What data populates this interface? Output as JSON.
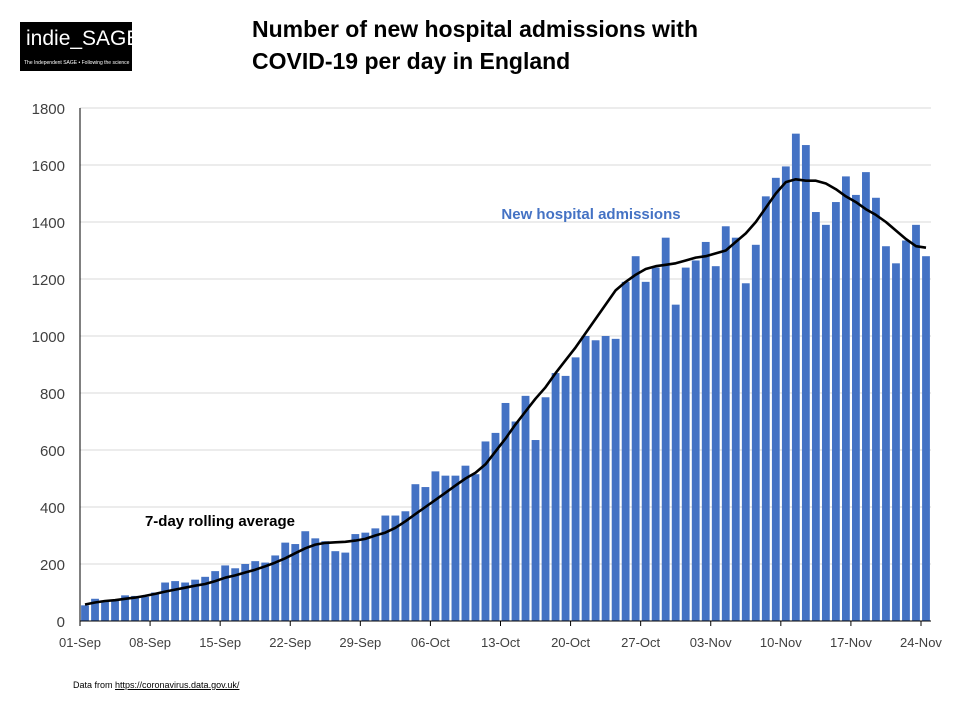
{
  "logo": {
    "title": "indie_SAGE",
    "tagline": "The Independent SAGE • Following the science"
  },
  "title_lines": [
    "Number of new hospital admissions with",
    "COVID-19 per day in England"
  ],
  "source": {
    "prefix": "Data from ",
    "url": "https://coronavirus.data.gov.uk/"
  },
  "colors": {
    "bar": "#4472C4",
    "average_line": "#000000",
    "grid": "#D9D9D9",
    "bar_label": "#4472C4"
  },
  "chart_data": {
    "type": "bar",
    "title": "Number of new hospital admissions with COVID-19 per day in England",
    "xlabel": "",
    "ylabel": "",
    "ylim": [
      0,
      1800
    ],
    "yticks": [
      0,
      200,
      400,
      600,
      800,
      1000,
      1200,
      1400,
      1600,
      1800
    ],
    "grid": true,
    "x_tick_labels": [
      "01-Sep",
      "08-Sep",
      "15-Sep",
      "22-Sep",
      "29-Sep",
      "06-Oct",
      "13-Oct",
      "20-Oct",
      "27-Oct",
      "03-Nov",
      "10-Nov",
      "17-Nov",
      "24-Nov"
    ],
    "series": [
      {
        "name": "New hospital admissions",
        "kind": "bar",
        "values": [
          55,
          78,
          72,
          70,
          90,
          88,
          85,
          100,
          135,
          140,
          135,
          145,
          155,
          175,
          195,
          185,
          200,
          210,
          205,
          230,
          275,
          270,
          315,
          290,
          280,
          245,
          240,
          305,
          310,
          325,
          370,
          370,
          385,
          480,
          470,
          525,
          510,
          510,
          545,
          515,
          630,
          660,
          765,
          700,
          790,
          635,
          785,
          870,
          860,
          925,
          1000,
          985,
          1000,
          990,
          1190,
          1280,
          1190,
          1240,
          1345,
          1110,
          1240,
          1265,
          1330,
          1245,
          1385,
          1345,
          1185,
          1320,
          1490,
          1555,
          1595,
          1710,
          1670,
          1435,
          1390,
          1470,
          1560,
          1495,
          1575,
          1485,
          1315,
          1255,
          1335,
          1390,
          1280
        ]
      },
      {
        "name": "7-day rolling average",
        "kind": "line",
        "values": [
          58,
          65,
          70,
          73,
          78,
          82,
          88,
          95,
          103,
          110,
          117,
          124,
          130,
          140,
          152,
          160,
          170,
          180,
          192,
          205,
          220,
          238,
          255,
          268,
          274,
          276,
          278,
          282,
          288,
          300,
          310,
          327,
          350,
          375,
          400,
          425,
          450,
          475,
          500,
          520,
          550,
          595,
          640,
          690,
          735,
          780,
          820,
          870,
          915,
          960,
          1010,
          1060,
          1110,
          1160,
          1190,
          1215,
          1235,
          1245,
          1250,
          1255,
          1265,
          1275,
          1280,
          1290,
          1300,
          1330,
          1360,
          1400,
          1450,
          1500,
          1540,
          1550,
          1545,
          1545,
          1535,
          1515,
          1490,
          1470,
          1445,
          1425,
          1400,
          1370,
          1340,
          1315,
          1310
        ]
      }
    ]
  }
}
